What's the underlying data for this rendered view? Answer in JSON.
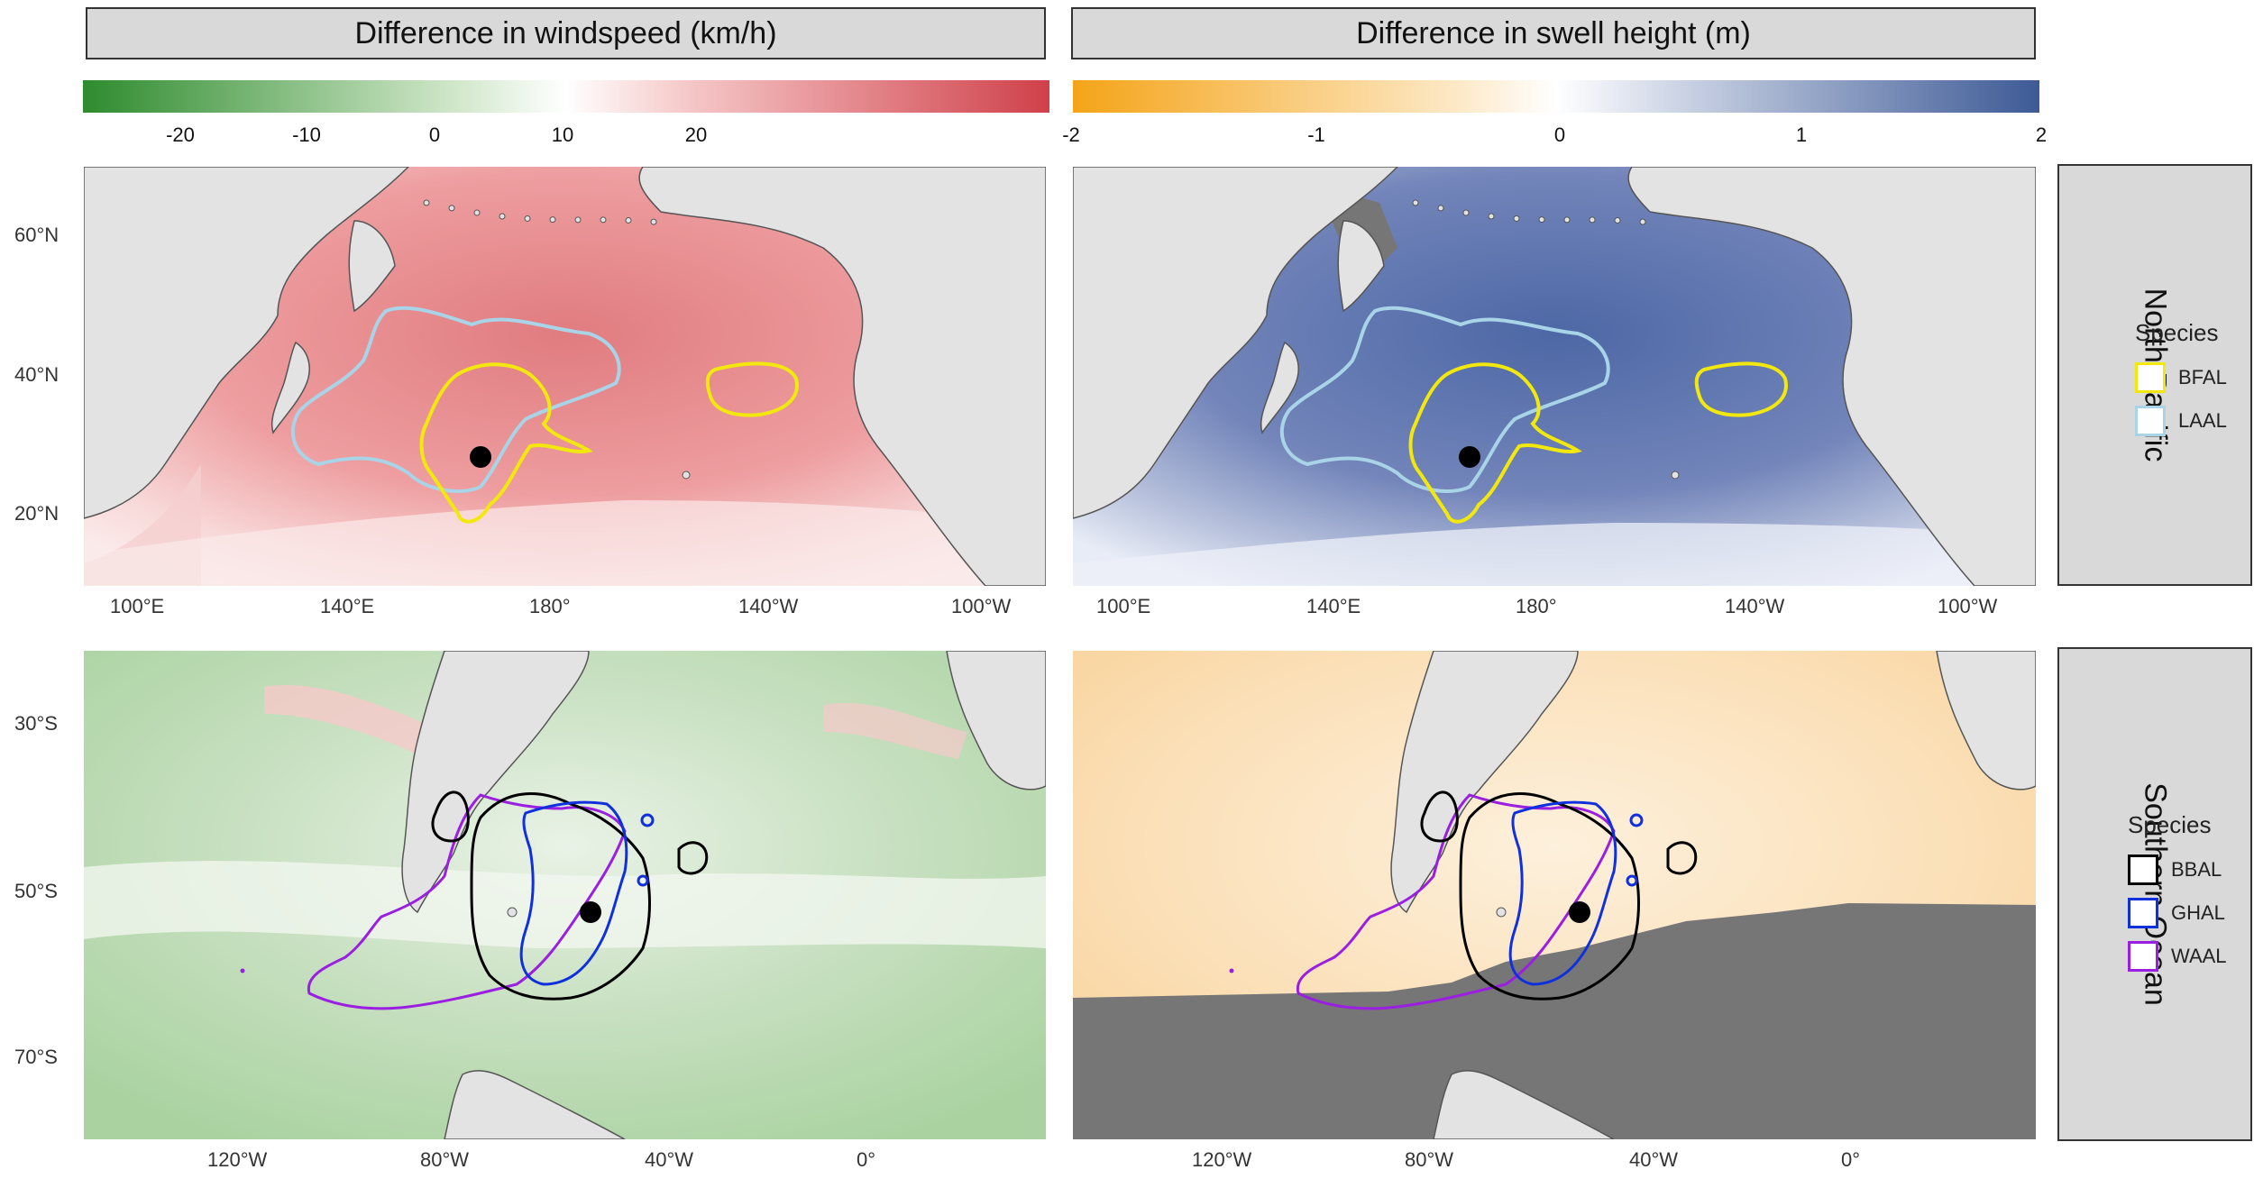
{
  "colors": {
    "land": "#e3e3e3",
    "no_data": "#767676",
    "coast": "#555555",
    "wind_pos": "#d0404a",
    "wind_neg": "#2e8b2e",
    "swell_pos": "#3d5a96",
    "swell_neg": "#f4a418",
    "bfal": "#f2e80e",
    "laal": "#a9d3e6",
    "bbal": "#000000",
    "ghal": "#1030dd",
    "waal": "#9a1fe0"
  },
  "panels": {
    "wind_title": "Difference in windspeed (km/h)",
    "swell_title": "Difference in swell height (m)"
  },
  "colorbars": {
    "wind_ticks": [
      "-20",
      "-10",
      "0",
      "10",
      "20"
    ],
    "swell_ticks": [
      "-2",
      "-1",
      "0",
      "1",
      "2"
    ]
  },
  "rows": {
    "north_pacific": "North Pacific",
    "southern_ocean": "Southern Ocean"
  },
  "axes": {
    "np_lat": [
      "60°N",
      "40°N",
      "20°N"
    ],
    "np_lon": [
      "100°E",
      "140°E",
      "180°",
      "140°W",
      "100°W"
    ],
    "so_lat": [
      "30°S",
      "50°S",
      "70°S"
    ],
    "so_lon": [
      "120°W",
      "80°W",
      "40°W",
      "0°"
    ]
  },
  "legend_np": {
    "title": "Species",
    "items": [
      "BFAL",
      "LAAL"
    ]
  },
  "legend_so": {
    "title": "Species",
    "items": [
      "BBAL",
      "GHAL",
      "WAAL"
    ]
  }
}
